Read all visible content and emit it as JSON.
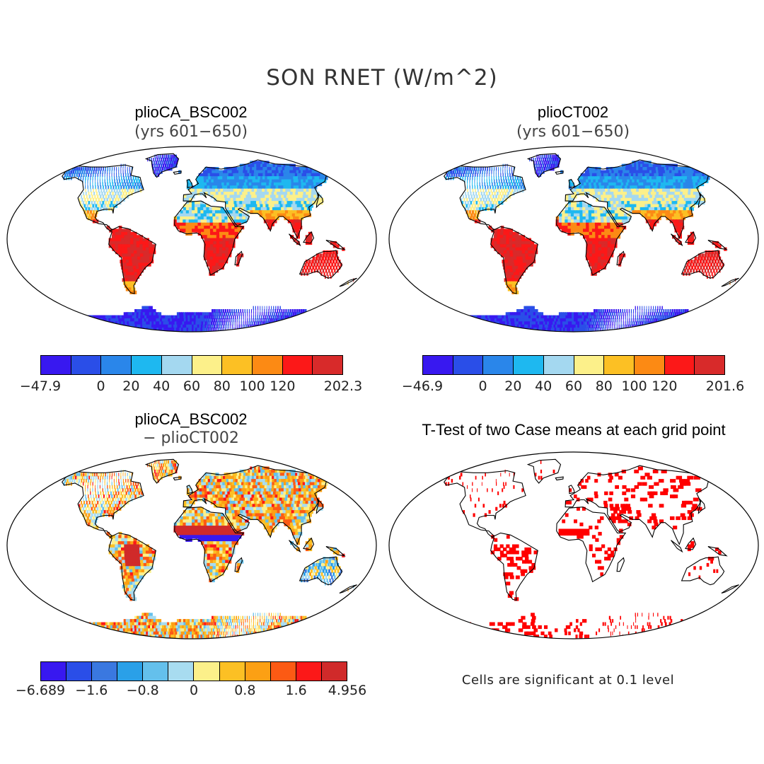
{
  "figure": {
    "title": "SON RNET (W/m^2)"
  },
  "panels": [
    {
      "title": "plioCA_BSC002",
      "subtitle": "(yrs 601−650)",
      "palette": [
        "#3818f0",
        "#2a4ee8",
        "#2a86ea",
        "#1eb8f0",
        "#a4d8f0",
        "#fcf08a",
        "#fcc024",
        "#fc8a14",
        "#fc1818",
        "#d82a2a"
      ],
      "tick_labels": [
        "−47.9",
        "0",
        "20",
        "40",
        "60",
        "80",
        "100",
        "120",
        "202.3"
      ],
      "tick_positions": [
        0,
        2,
        3,
        4,
        5,
        6,
        7,
        8,
        10
      ]
    },
    {
      "title": "plioCT002",
      "subtitle": "(yrs 601−650)",
      "palette": [
        "#3818f0",
        "#2a4ee8",
        "#2a86ea",
        "#1eb8f0",
        "#a4d8f0",
        "#fcf08a",
        "#fcc024",
        "#fc8a14",
        "#fc1818",
        "#d82a2a"
      ],
      "tick_labels": [
        "−46.9",
        "0",
        "20",
        "40",
        "60",
        "80",
        "100",
        "120",
        "201.6"
      ],
      "tick_positions": [
        0,
        2,
        3,
        4,
        5,
        6,
        7,
        8,
        10
      ]
    },
    {
      "title": "plioCA_BSC002",
      "subtitle": "− plioCT002",
      "palette": [
        "#3818f0",
        "#2a4ee8",
        "#3a78e0",
        "#2aa0e8",
        "#64c0ec",
        "#a8dcf0",
        "#fcf08a",
        "#fcc024",
        "#fca014",
        "#fc5a14",
        "#fc1818",
        "#d02a2a"
      ],
      "tick_labels": [
        "−6.689",
        "−1.6",
        "−0.8",
        "0",
        "0.8",
        "1.6",
        "4.956"
      ],
      "tick_positions": [
        0,
        2,
        4,
        6,
        8,
        10,
        12
      ]
    },
    {
      "title": "T-Test of two Case means at each grid point",
      "note": "Cells are significant at 0.1 level",
      "significant_color": "#ff0000"
    }
  ]
}
